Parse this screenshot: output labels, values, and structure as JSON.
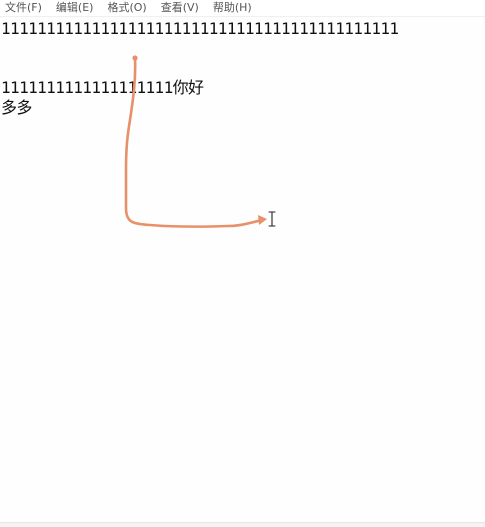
{
  "menu": {
    "items": [
      {
        "label": "文件(F)"
      },
      {
        "label": "编辑(E)"
      },
      {
        "label": "格式(O)"
      },
      {
        "label": "查看(V)"
      },
      {
        "label": "帮助(H)"
      }
    ]
  },
  "document": {
    "lines": [
      "11111111111111111111111111111111111111111111",
      "",
      "",
      "1111111111111111111你好",
      "多多"
    ]
  },
  "annotation": {
    "arrow_color": "#e8906a",
    "cursor_icon": "text-cursor-ibeam-icon"
  }
}
